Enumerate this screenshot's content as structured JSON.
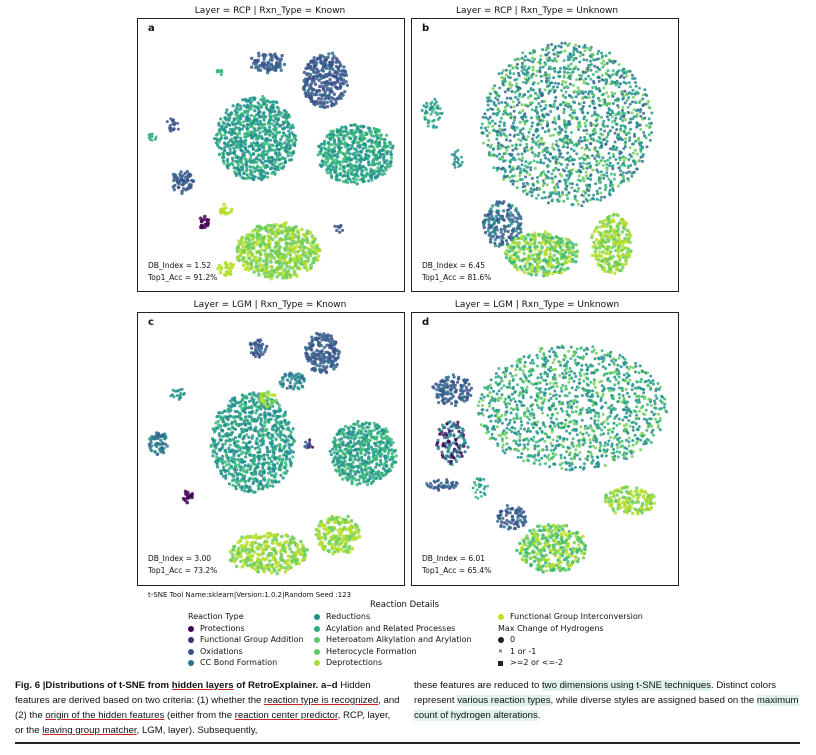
{
  "panels": [
    {
      "id": "a",
      "title": "Layer = RCP | Rxn_Type = Known",
      "letter": "a",
      "db_index": "DB_Index = 1.52",
      "top1_acc": "Top1_Acc = 91.2%"
    },
    {
      "id": "b",
      "title": "Layer = RCP | Rxn_Type = Unknown",
      "letter": "b",
      "db_index": "DB_Index = 6.45",
      "top1_acc": "Top1_Acc = 81.6%"
    },
    {
      "id": "c",
      "title": "Layer = LGM | Rxn_Type = Known",
      "letter": "c",
      "db_index": "DB_Index = 3.00",
      "top1_acc": "Top1_Acc = 73.2%"
    },
    {
      "id": "d",
      "title": "Layer = LGM | Rxn_Type = Unknown",
      "letter": "d",
      "db_index": "DB_Index = 6.01",
      "top1_acc": "Top1_Acc = 65.4%"
    }
  ],
  "tool_line": "t-SNE Tool Name:sklearn|Version:1.0.2|Random Seed :123",
  "legend": {
    "title": "Reaction Details",
    "col1": [
      {
        "label": "Reaction Type",
        "marker": "none",
        "color": ""
      },
      {
        "label": "Protections",
        "marker": "dot",
        "color": "#440154"
      },
      {
        "label": "Functional Group Addition",
        "marker": "dot",
        "color": "#472c7a"
      },
      {
        "label": "Oxidations",
        "marker": "dot",
        "color": "#3b518b"
      },
      {
        "label": "CC Bond Formation",
        "marker": "dot",
        "color": "#2c718e"
      }
    ],
    "col2": [
      {
        "label": "Reductions",
        "marker": "dot",
        "color": "#21908d"
      },
      {
        "label": "Acylation and Related Processes",
        "marker": "dot",
        "color": "#27ad81"
      },
      {
        "label": "Heteroatom Alkylation and Arylation",
        "marker": "dot",
        "color": "#5cc863"
      },
      {
        "label": "Heterocycle Formation",
        "marker": "dot",
        "color": "#5ec962"
      },
      {
        "label": "Deprotections",
        "marker": "dot",
        "color": "#aadc32"
      }
    ],
    "col3": [
      {
        "label": "Functional Group Interconversion",
        "marker": "dot",
        "color": "#c2df23"
      },
      {
        "label": "Max Change of Hydrogens",
        "marker": "none",
        "color": ""
      },
      {
        "label": "0",
        "marker": "dot",
        "color": "#222222"
      },
      {
        "label": "1 or -1",
        "marker": "x",
        "color": "#222222"
      },
      {
        "label": ">=2 or <=-2",
        "marker": "square",
        "color": "#222222"
      }
    ]
  },
  "caption": {
    "fig_label": "Fig. 6 |",
    "title_part1": "Distributions of t-SNE from ",
    "title_hl": "hidden layers",
    "title_part2": " of RetroExplainer. a",
    "title_dash": "–",
    "title_d": "d",
    "left_text_1": " Hidden features are derived based on two criteria: (1) whether the ",
    "left_ul_1": "reaction type is recognized",
    "left_text_2": ", and (2) the ",
    "left_ul_2a": "origin of the hidden features",
    "left_text_3": " (either from the ",
    "left_ul_3": "reaction center predictor",
    "left_text_4": ", RCP, layer, or the ",
    "left_ul_4": "leaving group matcher",
    "left_text_5": ", LGM, layer). Subsequently,",
    "right_text_1": "these features are reduced to ",
    "right_hl_1": "two dimensions using t-SNE techniques",
    "right_text_2": ". Distinct colors represent ",
    "right_hl_2": "various reaction types",
    "right_text_3": ", while diverse styles are assigned based on the ",
    "right_hl_3": "maximum count of hydrogen alterations",
    "right_text_4": "."
  },
  "colors": {
    "dark_purple": "#440154",
    "indigo": "#3b528b",
    "blue": "#31688e",
    "teal": "#21918c",
    "teal_green": "#35b779",
    "green": "#6ece58",
    "yellow_green": "#b5de2b"
  }
}
